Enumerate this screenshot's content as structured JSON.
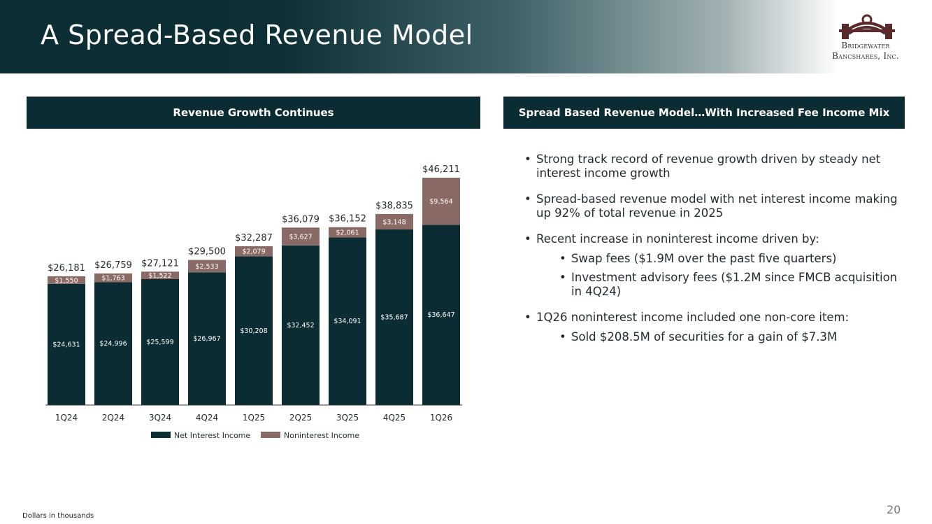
{
  "header": {
    "title": "A Spread-Based Revenue Model",
    "logo_line1": "Bridgewater",
    "logo_line2": "Bancshares, Inc."
  },
  "left_panel": {
    "heading": "Revenue Growth Continues"
  },
  "right_panel": {
    "heading": "Spread Based Revenue Model…With Increased Fee Income Mix",
    "bullets": [
      "Strong track record of revenue growth driven by steady net interest income growth",
      "Spread-based revenue model with net interest income making up 92% of total revenue in 2025",
      "Recent increase in noninterest income driven by:",
      "1Q26 noninterest income included one non-core item:"
    ],
    "sub_bullets_3": [
      "Swap fees ($1.9M over the past five quarters)",
      "Investment advisory fees ($1.2M since FMCB acquisition in 4Q24)"
    ],
    "sub_bullets_4": [
      "Sold $208.5M of securities for a gain of $7.3M"
    ]
  },
  "footnote": "Dollars in thousands",
  "page_number": "20",
  "colors": {
    "net_interest": "#0c2c33",
    "noninterest": "#8a6a64",
    "header_dark": "#0b2d33"
  },
  "chart_data": {
    "type": "bar",
    "stacked": true,
    "categories": [
      "1Q24",
      "2Q24",
      "3Q24",
      "4Q24",
      "1Q25",
      "2Q25",
      "3Q25",
      "4Q25",
      "1Q26"
    ],
    "series": [
      {
        "name": "Net Interest Income",
        "values": [
          24631,
          24996,
          25599,
          26967,
          30208,
          32452,
          34091,
          35687,
          36647
        ],
        "labels": [
          "$24,631",
          "$24,996",
          "$25,599",
          "$26,967",
          "$30,208",
          "$32,452",
          "$34,091",
          "$35,687",
          "$36,647"
        ]
      },
      {
        "name": "Noninterest Income",
        "values": [
          1550,
          1763,
          1522,
          2533,
          2079,
          3627,
          2061,
          3148,
          9564
        ],
        "labels": [
          "$1,550",
          "$1,763",
          "$1,522",
          "$2,533",
          "$2,079",
          "$3,627",
          "$2,061",
          "$3,148",
          "$9,564"
        ]
      }
    ],
    "totals": [
      26181,
      26759,
      27121,
      29500,
      32287,
      36079,
      36152,
      38835,
      46211
    ],
    "total_labels": [
      "$26,181",
      "$26,759",
      "$27,121",
      "$29,500",
      "$32,287",
      "$36,079",
      "$36,152",
      "$38,835",
      "$46,211"
    ],
    "legend_position": "bottom",
    "ylim": [
      0,
      50000
    ],
    "grid": false
  }
}
